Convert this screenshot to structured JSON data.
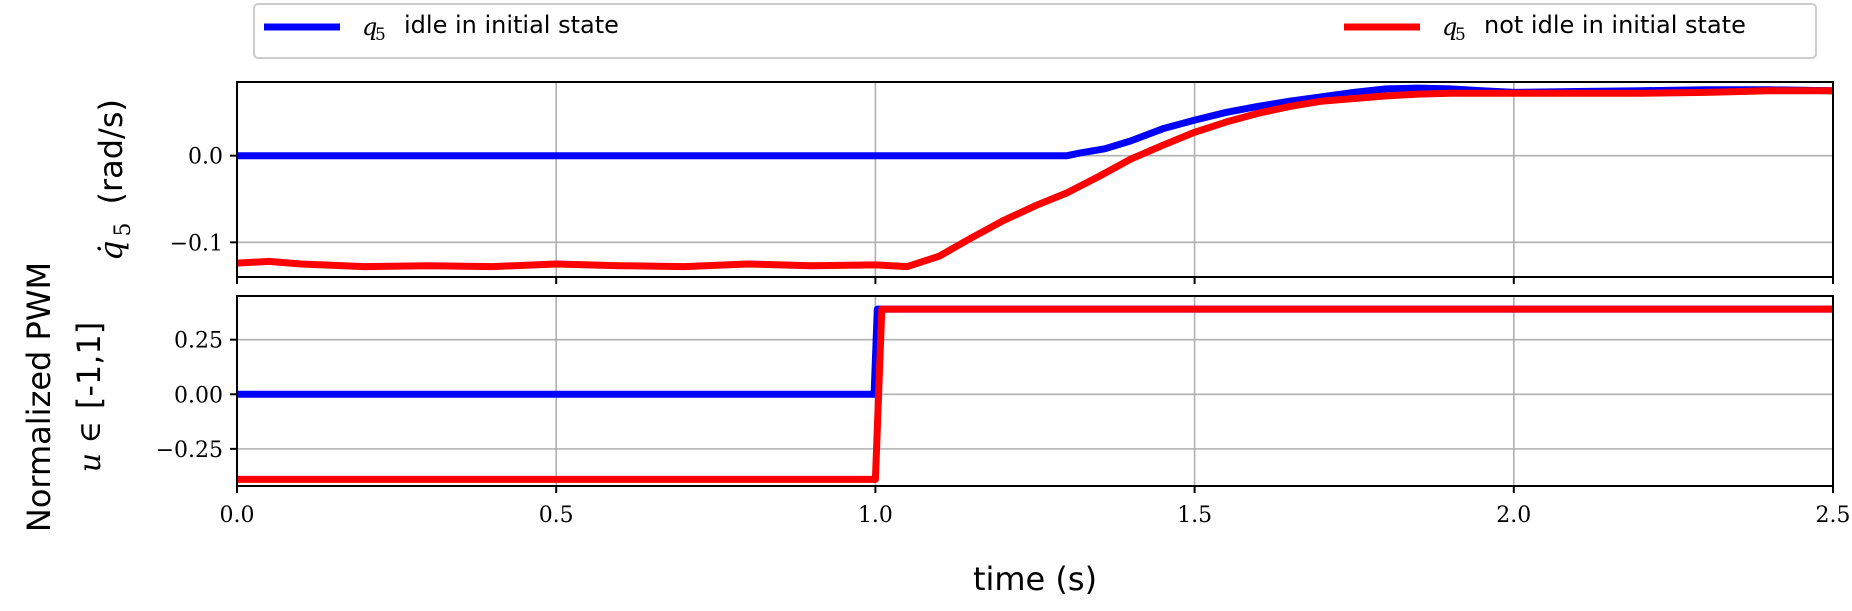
{
  "chart_data": [
    {
      "type": "line",
      "xlabel": "",
      "ylabel": "(rad/s)",
      "ylabel_symbol": "q̇",
      "ylabel_sub": "5",
      "xlim": [
        0,
        2.5
      ],
      "ylim": [
        -0.14,
        0.085
      ],
      "yticks": [
        0.0,
        -0.1
      ],
      "ytick_labels": [
        "0.0",
        "−0.1"
      ],
      "xticks": [
        0,
        0.5,
        1.0,
        1.5,
        2.0,
        2.5
      ],
      "grid": true,
      "series": [
        {
          "name": "q5 idle in initial state",
          "color": "#0000ff",
          "x": [
            0,
            0.5,
            1.0,
            1.3,
            1.32,
            1.36,
            1.4,
            1.45,
            1.5,
            1.55,
            1.6,
            1.65,
            1.7,
            1.75,
            1.8,
            1.85,
            1.9,
            1.95,
            2.0,
            2.1,
            2.2,
            2.3,
            2.4,
            2.5
          ],
          "y": [
            0,
            0,
            0,
            0,
            0.003,
            0.008,
            0.017,
            0.031,
            0.041,
            0.05,
            0.057,
            0.063,
            0.068,
            0.073,
            0.077,
            0.078,
            0.077,
            0.075,
            0.073,
            0.074,
            0.075,
            0.076,
            0.076,
            0.075
          ]
        },
        {
          "name": "q5 not idle in initial state",
          "color": "#ff0000",
          "x": [
            0,
            0.05,
            0.1,
            0.2,
            0.3,
            0.4,
            0.5,
            0.6,
            0.7,
            0.8,
            0.9,
            1.0,
            1.05,
            1.1,
            1.15,
            1.2,
            1.25,
            1.3,
            1.35,
            1.4,
            1.45,
            1.5,
            1.55,
            1.6,
            1.65,
            1.7,
            1.75,
            1.8,
            1.85,
            1.9,
            2.0,
            2.1,
            2.2,
            2.3,
            2.4,
            2.5
          ],
          "y": [
            -0.124,
            -0.122,
            -0.125,
            -0.128,
            -0.127,
            -0.128,
            -0.125,
            -0.127,
            -0.128,
            -0.125,
            -0.127,
            -0.126,
            -0.128,
            -0.116,
            -0.095,
            -0.075,
            -0.058,
            -0.043,
            -0.024,
            -0.004,
            0.012,
            0.027,
            0.039,
            0.049,
            0.057,
            0.063,
            0.066,
            0.069,
            0.071,
            0.072,
            0.072,
            0.072,
            0.072,
            0.073,
            0.075,
            0.075
          ]
        }
      ]
    },
    {
      "type": "line",
      "xlabel": "time (s)",
      "ylabel_line1": "Normalized PWM",
      "ylabel_line2_math": "u ∈",
      "ylabel_line2_text": "[-1,1]",
      "xlim": [
        0,
        2.5
      ],
      "ylim": [
        -0.42,
        0.45
      ],
      "yticks": [
        0.25,
        0.0,
        -0.25
      ],
      "ytick_labels": [
        "0.25",
        "0.00",
        "−0.25"
      ],
      "xticks": [
        0,
        0.5,
        1.0,
        1.5,
        2.0,
        2.5
      ],
      "xtick_labels": [
        "0.0",
        "0.5",
        "1.0",
        "1.5",
        "2.0",
        "2.5"
      ],
      "grid": true,
      "series": [
        {
          "name": "q5 idle in initial state",
          "color": "#0000ff",
          "x": [
            0,
            0.998,
            1.003,
            1.01,
            2.5
          ],
          "y": [
            0,
            0,
            0.39,
            0.39,
            0.39
          ]
        },
        {
          "name": "q5 not idle in initial state",
          "color": "#ff0000",
          "x": [
            0,
            1.0,
            1.01,
            2.5
          ],
          "y": [
            -0.39,
            -0.39,
            0.39,
            0.39
          ]
        }
      ]
    }
  ],
  "legend": {
    "placement": "top",
    "items": [
      {
        "symbol": "q",
        "sub": "5",
        "label": "idle in initial state",
        "color": "#0000ff"
      },
      {
        "symbol": "q",
        "sub": "5",
        "label": "not idle in initial state",
        "color": "#ff0000"
      }
    ]
  }
}
